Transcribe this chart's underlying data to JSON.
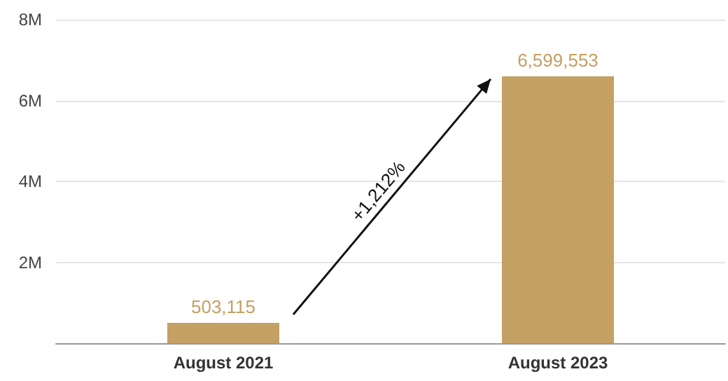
{
  "chart_data": {
    "type": "bar",
    "categories": [
      "August 2021",
      "August 2023"
    ],
    "values": [
      503115,
      6599553
    ],
    "value_labels": [
      "503,115",
      "6,599,553"
    ],
    "color": "#c4a062",
    "ylim": [
      0,
      8000000
    ],
    "yticks": [
      {
        "value": 0,
        "label": null
      },
      {
        "value": 2000000,
        "label": "2M"
      },
      {
        "value": 4000000,
        "label": "4M"
      },
      {
        "value": 6000000,
        "label": "6M"
      },
      {
        "value": 8000000,
        "label": "8M"
      }
    ],
    "grid": "y",
    "annotations": [
      "+1,212%"
    ]
  }
}
